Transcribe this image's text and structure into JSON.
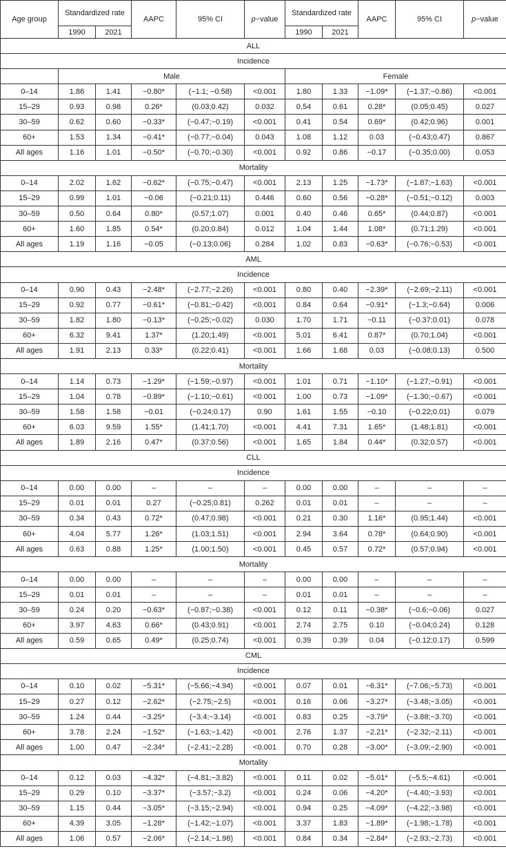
{
  "header": {
    "age_group": "Age group",
    "std_rate_male": "Standardized rate",
    "std_rate_female": "Standardized rate",
    "aapc": "AAPC",
    "ci": "95% CI",
    "p_prefix": "p",
    "p_suffix": "−value",
    "year1": "1990",
    "year2": "2021"
  },
  "sex_labels": {
    "male": "Male",
    "female": "Female"
  },
  "sections": [
    {
      "title": "ALL",
      "blocks": [
        {
          "title": "Incidence",
          "rows": [
            [
              "0–14",
              "1.86",
              "1.41",
              "−0.80*",
              "(−1.1; −0.58)",
              "<0.001",
              "1.80",
              "1.33",
              "−1.09*",
              "(−1.37;−0.86)",
              "<0.001"
            ],
            [
              "15–29",
              "0.93",
              "0.98",
              "0.26*",
              "(0.03;0.42)",
              "0.032",
              "0.54",
              "0.61",
              "0.28*",
              "(0.05;0.45)",
              "0.027"
            ],
            [
              "30–59",
              "0.62",
              "0.60",
              "−0.33*",
              "(−0.47;−0.19)",
              "<0.001",
              "0.41",
              "0.54",
              "0.69*",
              "(0.42;0.96)",
              "0.001"
            ],
            [
              "60+",
              "1.53",
              "1.34",
              "−0.41*",
              "(−0.77;−0.04)",
              "0.043",
              "1.08",
              "1.12",
              "0.03",
              "(−0.43;0.47)",
              "0.867"
            ],
            [
              "All ages",
              "1.16",
              "1.01",
              "−0.50*",
              "(−0.70;−0.30)",
              "<0.001",
              "0.92",
              "0.86",
              "−0.17",
              "(−0.35;0.00)",
              "0.053"
            ]
          ]
        },
        {
          "title": "Mortality",
          "rows": [
            [
              "0–14",
              "2.02",
              "1.62",
              "−0.62*",
              "(−0.75;−0.47)",
              "<0.001",
              "2.13",
              "1.25",
              "−1.73*",
              "(−1.87;−1.63)",
              "<0.001"
            ],
            [
              "15–29",
              "0.99",
              "1.01",
              "−0.06",
              "(−0.21;0.11)",
              "0.446",
              "0.60",
              "0.56",
              "−0.28*",
              "(−0.51;−0.12)",
              "0.003"
            ],
            [
              "30–59",
              "0.50",
              "0.64",
              "0.80*",
              "(0.57;1.07)",
              "0.001",
              "0.40",
              "0.46",
              "0.65*",
              "(0.44;0.87)",
              "<0.001"
            ],
            [
              "60+",
              "1.60",
              "1.85",
              "0.54*",
              "(0.20;0.84)",
              "0.012",
              "1.04",
              "1.44",
              "1.08*",
              "(0.71;1.29)",
              "<0.001"
            ],
            [
              "All ages",
              "1.19",
              "1.16",
              "−0.05",
              "(−0.13;0.06)",
              "0.284",
              "1.02",
              "0.83",
              "−0.63*",
              "(−0.76;−0.53)",
              "<0.001"
            ]
          ]
        }
      ]
    },
    {
      "title": "AML",
      "blocks": [
        {
          "title": "Incidence",
          "rows": [
            [
              "0–14",
              "0.90",
              "0.43",
              "−2.48*",
              "(−2.77;−2.26)",
              "<0.001",
              "0.80",
              "0.40",
              "−2.39*",
              "(−2.69;−2.11)",
              "<0.001"
            ],
            [
              "15–29",
              "0.92",
              "0.77",
              "−0.61*",
              "(−0.81;−0.42)",
              "<0.001",
              "0.84",
              "0.64",
              "−0.91*",
              "(−1.3;−0.64)",
              "0.006"
            ],
            [
              "30–59",
              "1.82",
              "1.80",
              "−0.13*",
              "(−0.25;−0.02)",
              "0.030",
              "1.70",
              "1.71",
              "−0.11",
              "(−0.37;0.01)",
              "0.078"
            ],
            [
              "60+",
              "6.32",
              "9.41",
              "1.37*",
              "(1.20;1.49)",
              "<0.001",
              "5.01",
              "6.41",
              "0.87*",
              "(0.70;1.04)",
              "<0.001"
            ],
            [
              "All ages",
              "1.91",
              "2.13",
              "0.33*",
              "(0.22;0.41)",
              "<0.001",
              "1.66",
              "1.68",
              "0.03",
              "(−0.08;0.13)",
              "0.500"
            ]
          ]
        },
        {
          "title": "Mortality",
          "rows": [
            [
              "0–14",
              "1.14",
              "0.73",
              "−1.29*",
              "(−1.59;−0.97)",
              "<0.001",
              "1.01",
              "0.71",
              "−1.10*",
              "(−1.27;−0.91)",
              "<0.001"
            ],
            [
              "15–29",
              "1.04",
              "0.78",
              "−0.89*",
              "(−1.10;−0.61)",
              "<0.001",
              "1.00",
              "0.73",
              "−1.09*",
              "(−1.30;−0.67)",
              "<0.001"
            ],
            [
              "30–59",
              "1.58",
              "1.58",
              "−0.01",
              "(−0.24;0.17)",
              "0.90",
              "1.61",
              "1.55",
              "−0.10",
              "(−0.22;0.01)",
              "0.079"
            ],
            [
              "60+",
              "6.03",
              "9.59",
              "1.55*",
              "(1.41;1.70)",
              "<0.001",
              "4.41",
              "7.31",
              "1.65*",
              "(1.48;1.81)",
              "<0.001"
            ],
            [
              "All ages",
              "1.89",
              "2.16",
              "0.47*",
              "(0.37;0.56)",
              "<0.001",
              "1.65",
              "1.84",
              "0.44*",
              "(0.32;0.57)",
              "<0.001"
            ]
          ]
        }
      ]
    },
    {
      "title": "CLL",
      "blocks": [
        {
          "title": "Incidence",
          "rows": [
            [
              "0–14",
              "0.00",
              "0.00",
              "–",
              "–",
              "–",
              "0.00",
              "0.00",
              "–",
              "–",
              "–"
            ],
            [
              "15–29",
              "0.01",
              "0.01",
              "0.27",
              "(−0.25;0.81)",
              "0.262",
              "0.01",
              "0.01",
              "–",
              "–",
              "–"
            ],
            [
              "30–59",
              "0.34",
              "0.43",
              "0.72*",
              "(0.47;0.98)",
              "<0.001",
              "0.21",
              "0.30",
              "1.16*",
              "(0.95;1.44)",
              "<0.001"
            ],
            [
              "60+",
              "4.04",
              "5.77",
              "1.26*",
              "(1.03;1.51)",
              "<0.001",
              "2.94",
              "3.64",
              "0.78*",
              "(0.64;0.90)",
              "<0.001"
            ],
            [
              "All ages",
              "0.63",
              "0.88",
              "1.25*",
              "(1.00;1.50)",
              "<0.001",
              "0.45",
              "0.57",
              "0.72*",
              "(0.57;0.94)",
              "<0.001"
            ]
          ]
        },
        {
          "title": "Mortality",
          "rows": [
            [
              "0–14",
              "0.00",
              "0.00",
              "–",
              "–",
              "–",
              "0.00",
              "0.00",
              "–",
              "–",
              "–"
            ],
            [
              "15–29",
              "0.01",
              "0.01",
              "–",
              "–",
              "–",
              "0.01",
              "0.01",
              "–",
              "–",
              "–"
            ],
            [
              "30–59",
              "0.24",
              "0.20",
              "−0.63*",
              "(−0.87;−0.38)",
              "<0.001",
              "0.12",
              "0.11",
              "−0.38*",
              "(−0.6;−0.06)",
              "0.027"
            ],
            [
              "60+",
              "3.97",
              "4.63",
              "0.66*",
              "(0.43;0.91)",
              "<0.001",
              "2.74",
              "2.75",
              "0.10",
              "(−0.04;0.24)",
              "0.128"
            ],
            [
              "All ages",
              "0.59",
              "0.65",
              "0.49*",
              "(0.25;0.74)",
              "<0.001",
              "0.39",
              "0.39",
              "0.04",
              "(−0.12;0.17)",
              "0.599"
            ]
          ]
        }
      ]
    },
    {
      "title": "CML",
      "blocks": [
        {
          "title": "Incidence",
          "rows": [
            [
              "0–14",
              "0.10",
              "0.02",
              "−5.31*",
              "(−5.66;−4.94)",
              "<0.001",
              "0.07",
              "0.01",
              "−6.31*",
              "(−7.06;−5.73)",
              "<0.001"
            ],
            [
              "15–29",
              "0.27",
              "0.12",
              "−2.62*",
              "(−2.75;−2.5)",
              "<0.001",
              "0.16",
              "0.06",
              "−3.27*",
              "(−3.48;−3.05)",
              "<0.001"
            ],
            [
              "30–59",
              "1.24",
              "0.44",
              "−3.25*",
              "(−3.4;−3.14)",
              "<0.001",
              "0.83",
              "0.25",
              "−3.79*",
              "(−3.88;−3.70)",
              "<0.001"
            ],
            [
              "60+",
              "3.78",
              "2.24",
              "−1.52*",
              "(−1.63;−1.42)",
              "<0.001",
              "2.76",
              "1.37",
              "−2.21*",
              "(−2.32;−2.11)",
              "<0.001"
            ],
            [
              "All ages",
              "1.00",
              "0.47",
              "−2.34*",
              "(−2.41;−2.28)",
              "<0.001",
              "0.70",
              "0.28",
              "−3.00*",
              "(−3.09;−2.90)",
              "<0.001"
            ]
          ]
        },
        {
          "title": "Mortality",
          "rows": [
            [
              "0–14",
              "0.12",
              "0.03",
              "−4.32*",
              "(−4.81;−3.82)",
              "<0.001",
              "0.11",
              "0.02",
              "−5.01*",
              "(−5.5;−4.61)",
              "<0.001"
            ],
            [
              "15–29",
              "0.29",
              "0.10",
              "−3.37*",
              "(−3.57;−3.2)",
              "<0.001",
              "0.24",
              "0.06",
              "−4.20*",
              "(−4.40;−3.93)",
              "<0.001"
            ],
            [
              "30–59",
              "1.15",
              "0.44",
              "−3.05*",
              "(−3.15;−2.94)",
              "<0.001",
              "0.94",
              "0.25",
              "−4.09*",
              "(−4.22;−3.98)",
              "<0.001"
            ],
            [
              "60+",
              "4.39",
              "3.05",
              "−1.28*",
              "(−1.42;−1.07)",
              "<0.001",
              "3.37",
              "1.83",
              "−1.89*",
              "(−1.98;−1.78)",
              "<0.001"
            ],
            [
              "All ages",
              "1.06",
              "0.57",
              "−2.06*",
              "(−2.14;−1.98)",
              "<0.001",
              "0.84",
              "0.34",
              "−2.84*",
              "(−2.93;−2.73)",
              "<0.001"
            ]
          ]
        }
      ]
    }
  ]
}
